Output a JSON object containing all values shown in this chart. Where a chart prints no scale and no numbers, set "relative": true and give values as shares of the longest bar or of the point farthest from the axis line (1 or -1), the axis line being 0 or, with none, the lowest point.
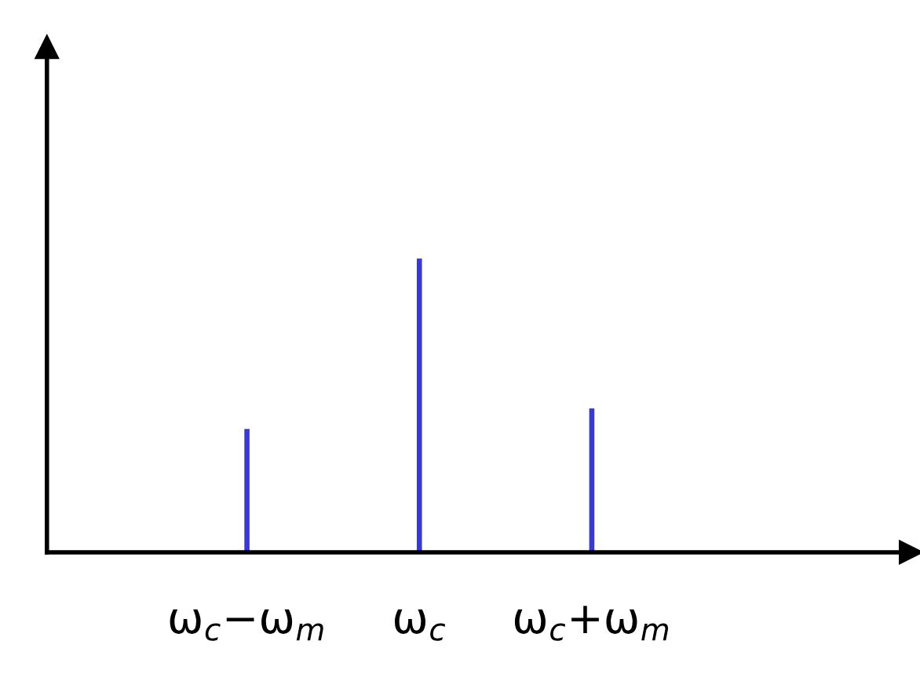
{
  "chart_data": {
    "type": "bar",
    "relative": true,
    "categories": [
      "ω$_{c}$−ω$_{m}$",
      "ω$_{c}$",
      "ω$_{c}$+ω$_{m}$"
    ],
    "values": [
      0.42,
      1,
      0.49
    ],
    "color": "#3a3ad0"
  }
}
